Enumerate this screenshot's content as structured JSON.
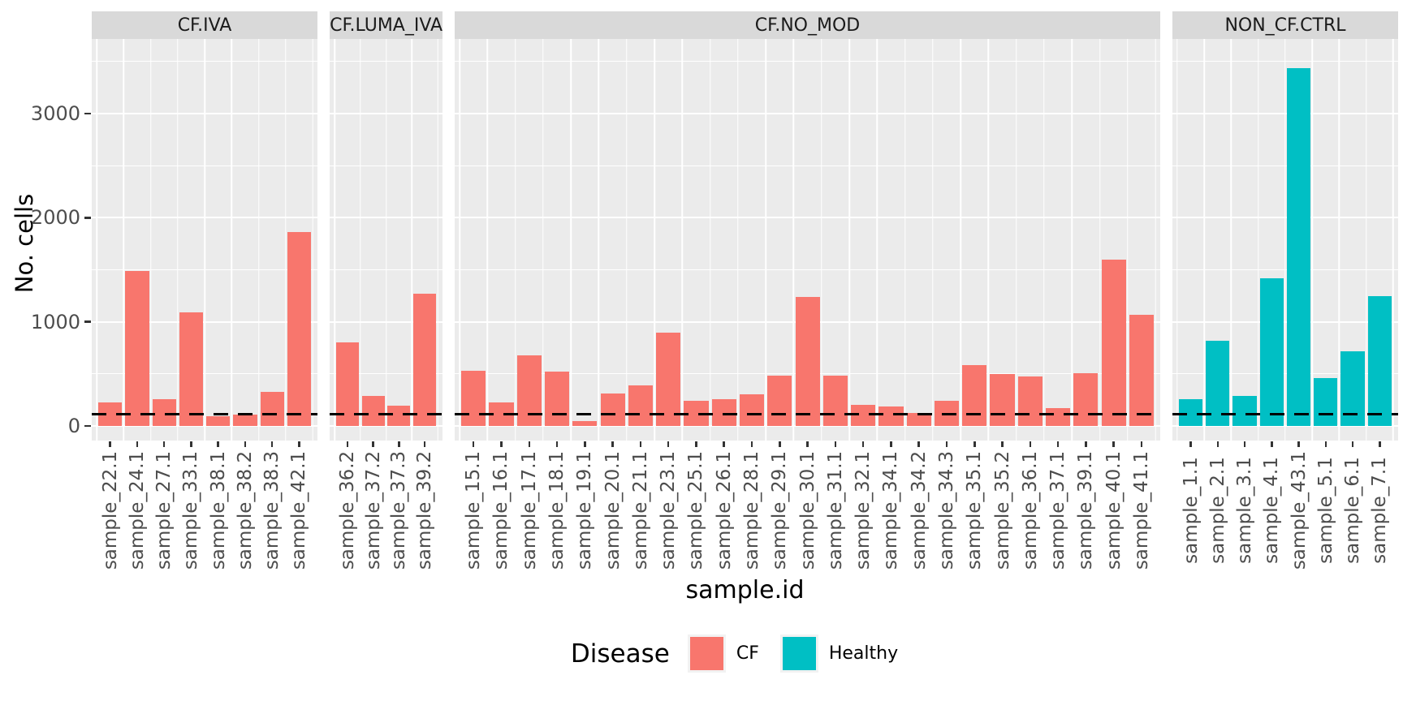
{
  "chart_data": {
    "type": "bar",
    "title": "",
    "xlabel": "sample.id",
    "ylabel": "No. cells",
    "ylim": [
      0,
      3700
    ],
    "yticks": [
      0,
      1000,
      2000,
      3000
    ],
    "grid": "on",
    "panel_background": "#EBEBEB",
    "strip_background": "#D9D9D9",
    "hline": {
      "value": 100,
      "color": "#000000",
      "style": "dashed"
    },
    "legend": {
      "title": "Disease",
      "position": "bottom",
      "entries": [
        {
          "label": "CF",
          "color": "#F8766D"
        },
        {
          "label": "Healthy",
          "color": "#00BFC4"
        }
      ]
    },
    "facets": [
      {
        "label": "CF.IVA",
        "group": "CF",
        "samples": [
          "sample_22.1",
          "sample_24.1",
          "sample_27.1",
          "sample_33.1",
          "sample_38.1",
          "sample_38.2",
          "sample_38.3",
          "sample_42.1"
        ],
        "values": [
          225,
          1490,
          255,
          1095,
          95,
          110,
          330,
          1860
        ]
      },
      {
        "label": "CF.LUMA_IVA",
        "group": "CF",
        "samples": [
          "sample_36.2",
          "sample_37.2",
          "sample_37.3",
          "sample_39.2"
        ],
        "values": [
          805,
          285,
          195,
          1270
        ]
      },
      {
        "label": "CF.NO_MOD",
        "group": "CF",
        "samples": [
          "sample_15.1",
          "sample_16.1",
          "sample_17.1",
          "sample_18.1",
          "sample_19.1",
          "sample_20.1",
          "sample_21.1",
          "sample_23.1",
          "sample_25.1",
          "sample_26.1",
          "sample_28.1",
          "sample_29.1",
          "sample_30.1",
          "sample_31.1",
          "sample_32.1",
          "sample_34.1",
          "sample_34.2",
          "sample_34.3",
          "sample_35.1",
          "sample_35.2",
          "sample_36.1",
          "sample_37.1",
          "sample_39.1",
          "sample_40.1",
          "sample_41.1"
        ],
        "values": [
          530,
          225,
          675,
          520,
          50,
          315,
          390,
          895,
          240,
          260,
          305,
          480,
          1240,
          480,
          200,
          190,
          125,
          245,
          585,
          500,
          475,
          175,
          505,
          1595,
          1070
        ]
      },
      {
        "label": "NON_CF.CTRL",
        "group": "Healthy",
        "samples": [
          "sample_1.1",
          "sample_2.1",
          "sample_3.1",
          "sample_4.1",
          "sample_43.1",
          "sample_5.1",
          "sample_6.1",
          "sample_7.1"
        ],
        "values": [
          260,
          820,
          285,
          1420,
          3440,
          460,
          720,
          1250
        ]
      }
    ]
  }
}
